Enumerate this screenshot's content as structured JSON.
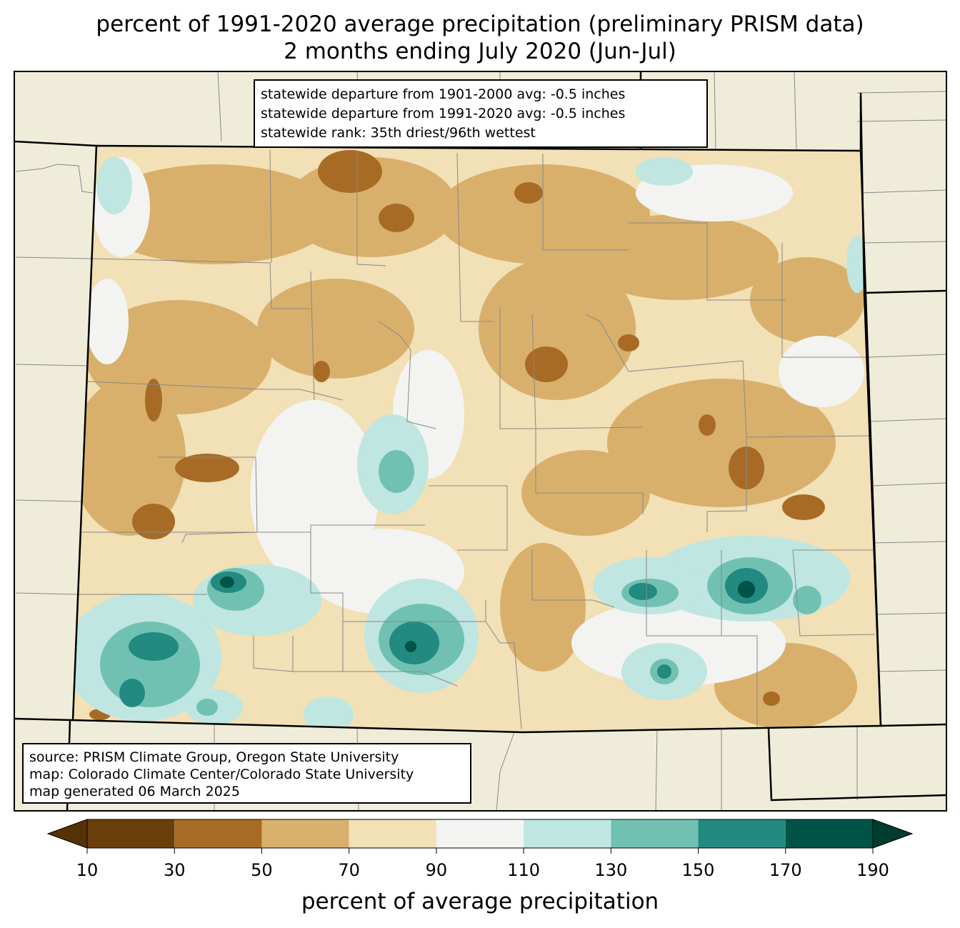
{
  "title": {
    "line1": "percent of 1991-2020 average precipitation (preliminary PRISM data)",
    "line2": "2 months ending July 2020 (Jun-Jul)"
  },
  "stats_box": {
    "line1": "statewide departure from 1901-2000 avg: -0.5 inches",
    "line2": "statewide departure from 1991-2020 avg: -0.5 inches",
    "line3": "statewide rank: 35th driest/96th wettest"
  },
  "source_box": {
    "line1": "source: PRISM Climate Group, Oregon State University",
    "line2": "map: Colorado Climate Center/Colorado State University",
    "line3": "map generated 06 March 2025"
  },
  "colorbar": {
    "label": "percent of average precipitation",
    "ticks": [
      "10",
      "30",
      "50",
      "70",
      "90",
      "110",
      "130",
      "150",
      "170",
      "190"
    ],
    "colors": [
      "#6b3f0c",
      "#a86b26",
      "#d8b06c",
      "#f2e0b6",
      "#f3f4f1",
      "#bfe6e1",
      "#71c1b3",
      "#228a80",
      "#005347"
    ],
    "under_color": "#563207",
    "over_color": "#003c30"
  },
  "colors": {
    "land": "#efedd9",
    "border": "#000000",
    "county": "#888888"
  }
}
